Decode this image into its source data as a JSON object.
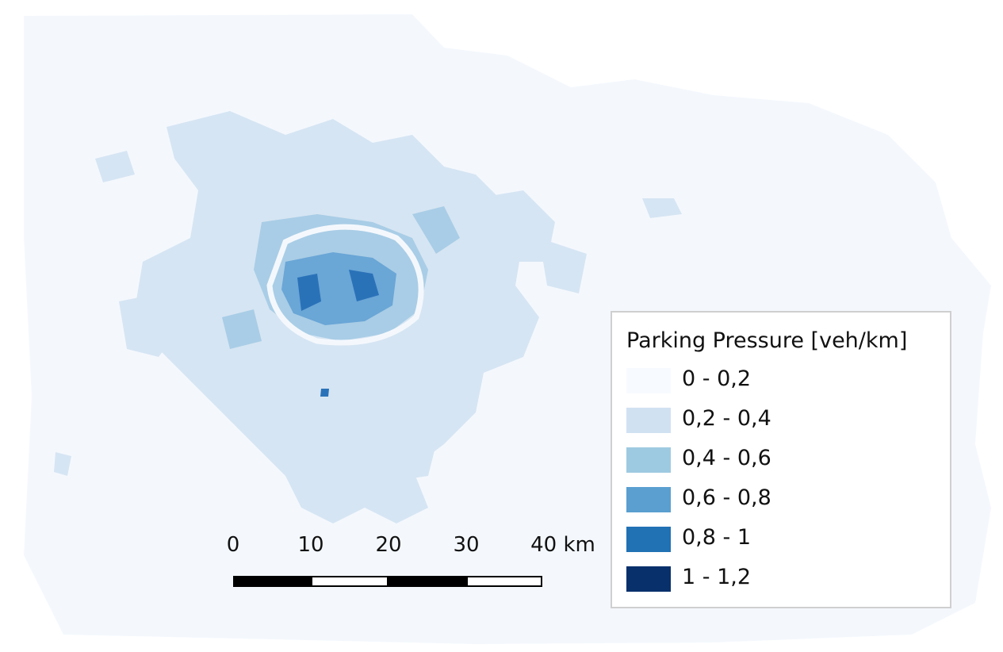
{
  "legend": {
    "title": "Parking Pressure [veh/km]",
    "classes": [
      {
        "label": "0 - 0,2",
        "color": "#f7fbff"
      },
      {
        "label": "0,2 - 0,4",
        "color": "#d0e1f2"
      },
      {
        "label": "0,4 - 0,6",
        "color": "#9ecae1"
      },
      {
        "label": "0,6 - 0,8",
        "color": "#5a9fd0"
      },
      {
        "label": "0,8 - 1",
        "color": "#2171b5"
      },
      {
        "label": "1 - 1,2",
        "color": "#08306b"
      }
    ]
  },
  "scale_bar": {
    "ticks": [
      "0",
      "10",
      "20",
      "30",
      "40 km"
    ]
  },
  "colors": {
    "background_region": "#f4f8fd",
    "urban_patches": "#cfe0f1",
    "dense_core": "#6aa6d6"
  }
}
